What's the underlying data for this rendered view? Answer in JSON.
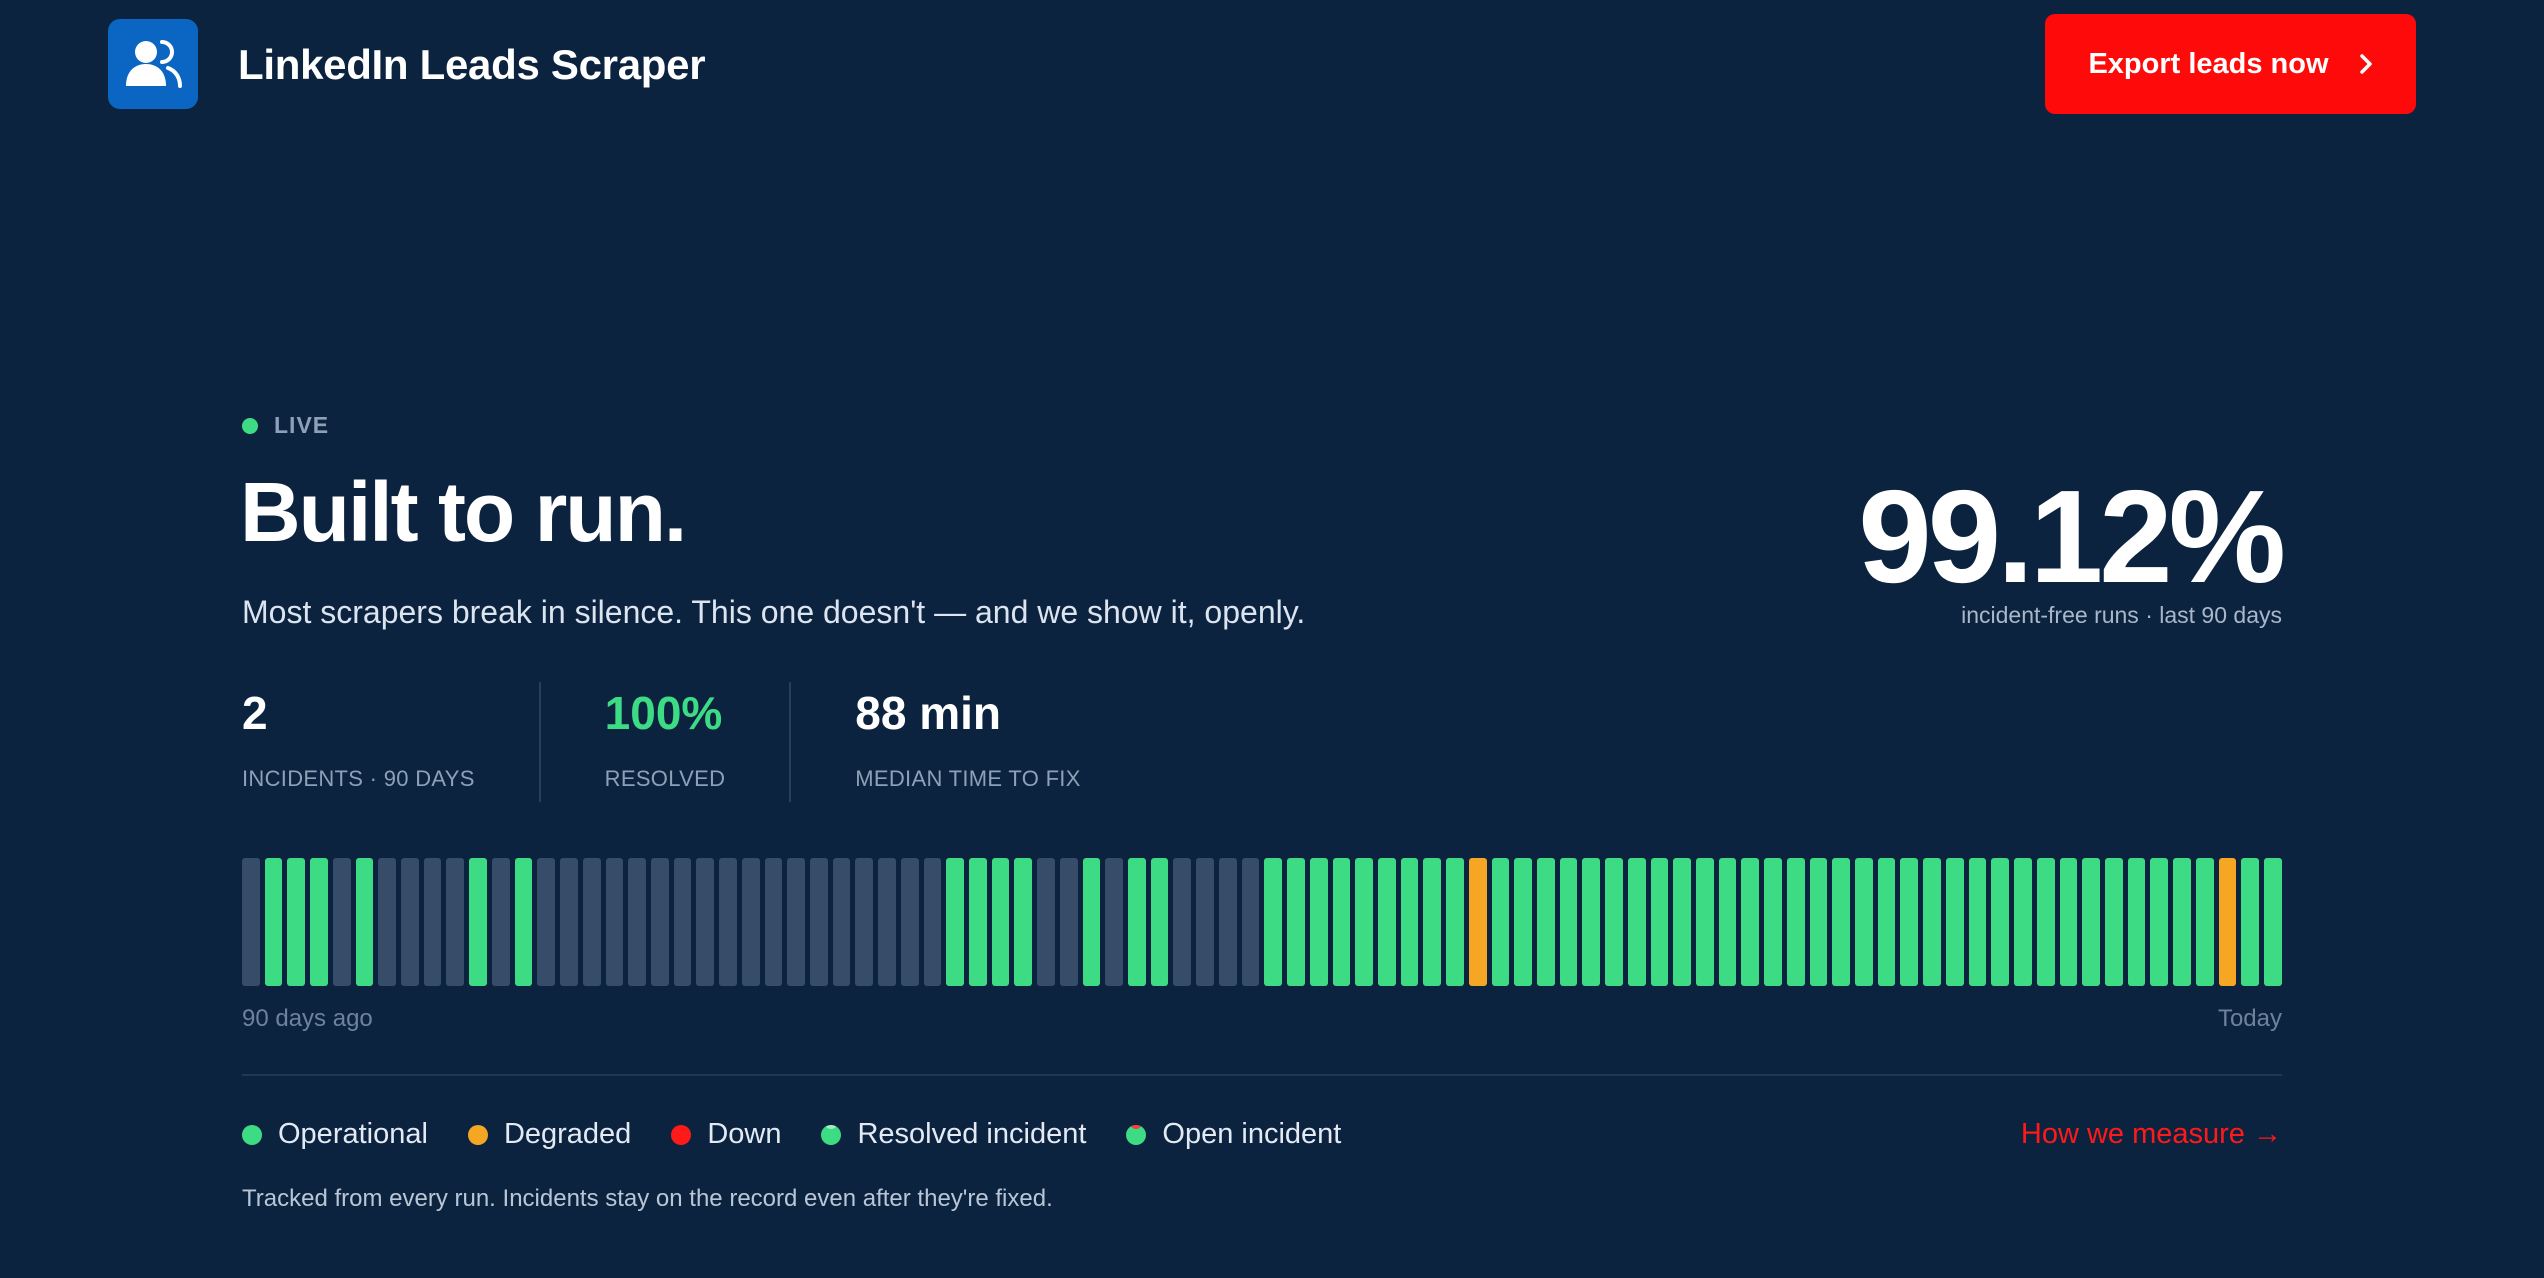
{
  "header": {
    "app_title": "LinkedIn Leads Scraper",
    "export_label": "Export leads now",
    "logo_icon": "users-icon",
    "brand_color": "#0a66c2",
    "cta_color": "#ff0a0a"
  },
  "hero": {
    "live_label": "LIVE",
    "title": "Built to run.",
    "subtitle": "Most scrapers break in silence. This one doesn't — and we show it, openly.",
    "uptime_value": "99.12%",
    "uptime_label": "incident-free runs · last 90 days"
  },
  "stats": [
    {
      "value": "2",
      "label": "INCIDENTS · 90 DAYS"
    },
    {
      "value": "100%",
      "label": "RESOLVED"
    },
    {
      "value": "88 min",
      "label": "MEDIAN TIME TO FIX"
    }
  ],
  "timeline": {
    "start_label": "90 days ago",
    "end_label": "Today",
    "status_colors": {
      "operational": "#3ddc84",
      "degraded": "#f5a623",
      "no_data": "#364c69"
    },
    "days": [
      "no_data",
      "operational",
      "operational",
      "operational",
      "no_data",
      "operational",
      "no_data",
      "no_data",
      "no_data",
      "no_data",
      "operational",
      "no_data",
      "operational",
      "no_data",
      "no_data",
      "no_data",
      "no_data",
      "no_data",
      "no_data",
      "no_data",
      "no_data",
      "no_data",
      "no_data",
      "no_data",
      "no_data",
      "no_data",
      "no_data",
      "no_data",
      "no_data",
      "no_data",
      "no_data",
      "operational",
      "operational",
      "operational",
      "operational",
      "no_data",
      "no_data",
      "operational",
      "no_data",
      "operational",
      "operational",
      "no_data",
      "no_data",
      "no_data",
      "no_data",
      "operational",
      "operational",
      "operational",
      "operational",
      "operational",
      "operational",
      "operational",
      "operational",
      "operational",
      "degraded",
      "operational",
      "operational",
      "operational",
      "operational",
      "operational",
      "operational",
      "operational",
      "operational",
      "operational",
      "operational",
      "operational",
      "operational",
      "operational",
      "operational",
      "operational",
      "operational",
      "operational",
      "operational",
      "operational",
      "operational",
      "operational",
      "operational",
      "operational",
      "operational",
      "operational",
      "operational",
      "operational",
      "operational",
      "operational",
      "operational",
      "operational",
      "operational",
      "degraded",
      "operational",
      "operational"
    ]
  },
  "legend": {
    "items": [
      {
        "label": "Operational",
        "color": "#3ddc84",
        "kind": "operational"
      },
      {
        "label": "Degraded",
        "color": "#f5a623",
        "kind": "degraded"
      },
      {
        "label": "Down",
        "color": "#ff1a1a",
        "kind": "down"
      },
      {
        "label": "Resolved incident",
        "color": "#3ddc84",
        "kind": "resolved"
      },
      {
        "label": "Open incident",
        "color": "#3ddc84",
        "kind": "open"
      }
    ],
    "measure_link": "How we measure →",
    "footnote": "Tracked from every run. Incidents stay on the record even after they're fixed."
  }
}
